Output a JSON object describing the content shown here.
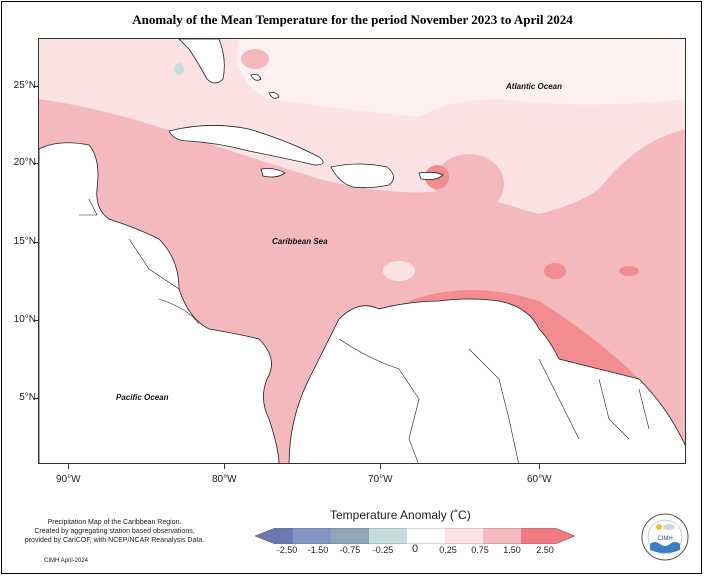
{
  "title": "Anomaly of the Mean Temperature for the period November 2023 to April 2024",
  "map": {
    "lat_labels": [
      "25°N",
      "20°N",
      "15°N",
      "10°N",
      "5°N"
    ],
    "lon_labels": [
      "90°W",
      "80°W",
      "70°W",
      "60°W"
    ],
    "oceans": {
      "atlantic": "Atlantic Ocean",
      "caribbean": "Caribbean Sea",
      "pacific": "Pacific Ocean"
    }
  },
  "legend": {
    "title": "Temperature Anomaly (˚C)",
    "labels": [
      "-2.50",
      "-1.50",
      "-0.75",
      "-0.25",
      "0",
      "0.25",
      "0.75",
      "1.50",
      "2.50"
    ],
    "colors": [
      "#6b78b4",
      "#8395c4",
      "#8fa6b8",
      "#c6dde0",
      "#ffffff",
      "#fde2e4",
      "#f3b9bd",
      "#f28c90",
      "#f07a80"
    ]
  },
  "credit": {
    "line1": "Precipitation Map of the Caribbean Region.",
    "line2": "Created by aggregating station based observations,",
    "line3": "provided by CariCOF, with NCEP/NCAR Reanalysis Data.",
    "date": "CIMH April-2024"
  },
  "logo": {
    "text": "CIMH",
    "icon": "cimh-logo-icon"
  }
}
